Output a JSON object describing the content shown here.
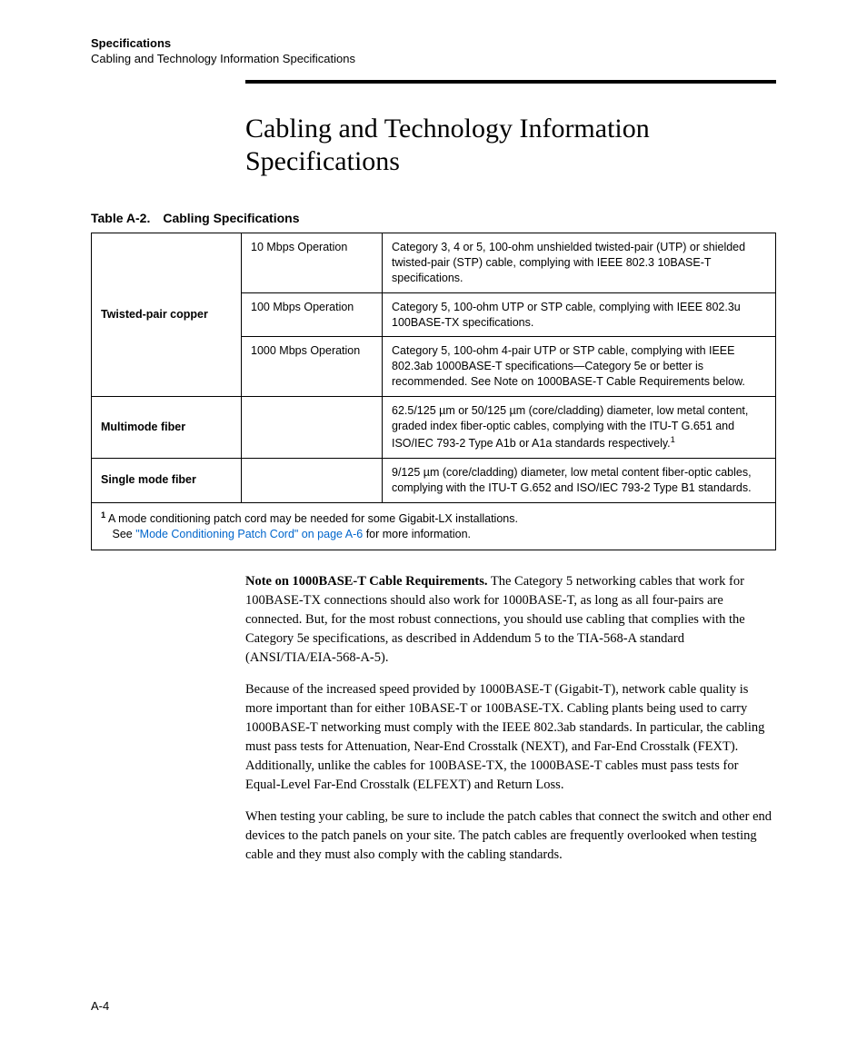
{
  "header": {
    "title": "Specifications",
    "subtitle": "Cabling and Technology Information Specifications"
  },
  "main_heading": "Cabling and Technology Information Specifications",
  "table": {
    "caption": "Table A-2. Cabling Specifications",
    "rows": {
      "twisted_pair": {
        "label": "Twisted-pair copper",
        "op10_label": "10 Mbps Operation",
        "op10_desc": "Category 3, 4 or 5, 100-ohm unshielded twisted-pair (UTP) or shielded twisted-pair (STP) cable, complying with IEEE 802.3 10BASE-T specifications.",
        "op100_label": "100 Mbps Operation",
        "op100_desc": "Category 5, 100-ohm UTP or STP cable, complying with IEEE 802.3u 100BASE-TX specifications.",
        "op1000_label": "1000 Mbps Operation",
        "op1000_desc": "Category 5, 100-ohm 4-pair UTP or STP cable, complying with IEEE 802.3ab 1000BASE-T specifications—Category 5e or better is recommended. See Note on 1000BASE-T Cable Requirements below."
      },
      "multimode": {
        "label": "Multimode fiber",
        "desc_pre": "62.5/125 µm or 50/125 µm (core/cladding) diameter, low metal content, graded index fiber-optic cables, complying with the ITU-T G.651 and ISO/IEC 793-2 Type A1b or A1a standards respectively.",
        "sup": "1"
      },
      "singlemode": {
        "label": "Single mode fiber",
        "desc": "9/125 µm (core/cladding) diameter, low metal content fiber-optic cables, complying with the ITU-T G.652 and ISO/IEC 793-2 Type B1 standards."
      }
    },
    "footnote": {
      "sup": "1",
      "text1": " A mode conditioning patch cord may be needed for some Gigabit-LX installations.",
      "text2_pre": " See ",
      "link": "\"Mode Conditioning Patch Cord\" on page A-6",
      "text2_post": " for more information."
    }
  },
  "paragraphs": {
    "p1_lead": "Note on 1000BASE-T Cable Requirements.",
    "p1_rest": "  The Category 5 networking cables that work for 100BASE-TX connections should also work for 1000BASE-T, as long as all four-pairs are connected. But, for the most robust connections, you should use cabling that complies with the Category 5e specifications, as described in Addendum 5 to the TIA-568-A standard (ANSI/TIA/EIA-568-A-5).",
    "p2": "Because of the increased speed provided by 1000BASE-T (Gigabit-T), network cable quality is more important than for either 10BASE-T or 100BASE-TX. Cabling plants being used to carry 1000BASE-T networking must comply with the IEEE 802.3ab standards. In particular, the cabling must pass tests for Attenuation, Near-End Crosstalk (NEXT), and Far-End Crosstalk (FEXT). Additionally, unlike the cables for 100BASE-TX, the 1000BASE-T cables must pass tests for Equal-Level Far-End Crosstalk (ELFEXT) and Return Loss.",
    "p3": "When testing your cabling, be sure to include the patch cables that connect the switch and other end devices to the patch panels on your site. The patch cables are frequently overlooked when testing cable and they must also comply with the cabling standards."
  },
  "page_number": "A-4"
}
